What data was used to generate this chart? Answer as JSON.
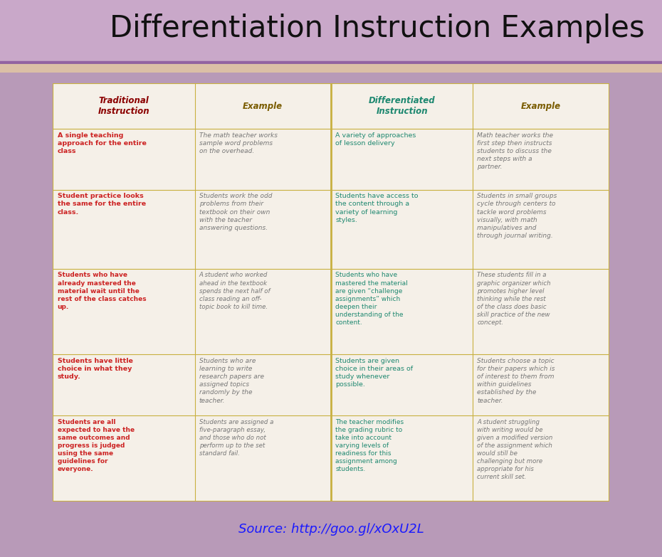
{
  "title": "Differentiation Instruction Examples",
  "bg_header": "#c9a8c9",
  "bg_main": "#b89ab8",
  "table_bg": "#f5f0e8",
  "border_color": "#c8b040",
  "source_text": "Source: http://goo.gl/xOxU2L",
  "source_color": "#1a1aff",
  "headers": [
    "Traditional\nInstruction",
    "Example",
    "Differentiated\nInstruction",
    "Example"
  ],
  "header_colors": [
    "#8b0000",
    "#7a5c00",
    "#1e8870",
    "#7a5c00"
  ],
  "trad_color": "#cc2222",
  "diff_color": "#1e8870",
  "ex_color": "#777777",
  "rows": [
    {
      "trad": "A single teaching\napproach for the entire\nclass",
      "example_trad": "The math teacher works\nsample word problems\non the overhead.",
      "diff": "A variety of approaches\nof lesson delivery",
      "example_diff": "Math teacher works the\nfirst step then instructs\nstudents to discuss the\nnext steps with a\npartner."
    },
    {
      "trad": "Student practice looks\nthe same for the entire\nclass.",
      "example_trad": "Students work the odd\nproblems from their\ntextbook on their own\nwith the teacher\nanswering questions.",
      "diff": "Students have access to\nthe content through a\nvariety of learning\nstyles.",
      "example_diff": "Students in small groups\ncycle through centers to\ntackle word problems\nvisually, with math\nmanipulatives and\nthrough journal writing."
    },
    {
      "trad": "Students who have\nalready mastered the\nmaterial wait until the\nrest of the class catches\nup.",
      "example_trad": "A student who worked\nahead in the textbook\nspends the next half of\nclass reading an off-\ntopic book to kill time.",
      "diff": "Students who have\nmastered the material\nare given “challenge\nassignments” which\ndeepen their\nunderstanding of the\ncontent.",
      "example_diff": "These students fill in a\ngraphic organizer which\npromotes higher level\nthinking while the rest\nof the class does basic\nskill practice of the new\nconcept."
    },
    {
      "trad": "Students have little\nchoice in what they\nstudy.",
      "example_trad": "Students who are\nlearning to write\nresearch papers are\nassigned topics\nrandomly by the\nteacher.",
      "diff": "Students are given\nchoice in their areas of\nstudy whenever\npossible.",
      "example_diff": "Students choose a topic\nfor their papers which is\nof interest to them from\nwithin guidelines\nestablished by the\nteacher."
    },
    {
      "trad": "Students are all\nexpected to have the\nsame outcomes and\nprogress is judged\nusing the same\nguidelines for\neveryone.",
      "example_trad": "Students are assigned a\nfive-paragraph essay,\nand those who do not\nperform up to the set\nstandard fail.",
      "diff": "The teacher modifies\nthe grading rubric to\ntake into account\nvarying levels of\nreadiness for this\nassignment among\nstudents.",
      "example_diff": "A student struggling\nwith writing would be\ngiven a modified version\nof the assignment which\nwould still be\nchallenging but more\nappropriate for his\ncurrent skill set."
    }
  ]
}
